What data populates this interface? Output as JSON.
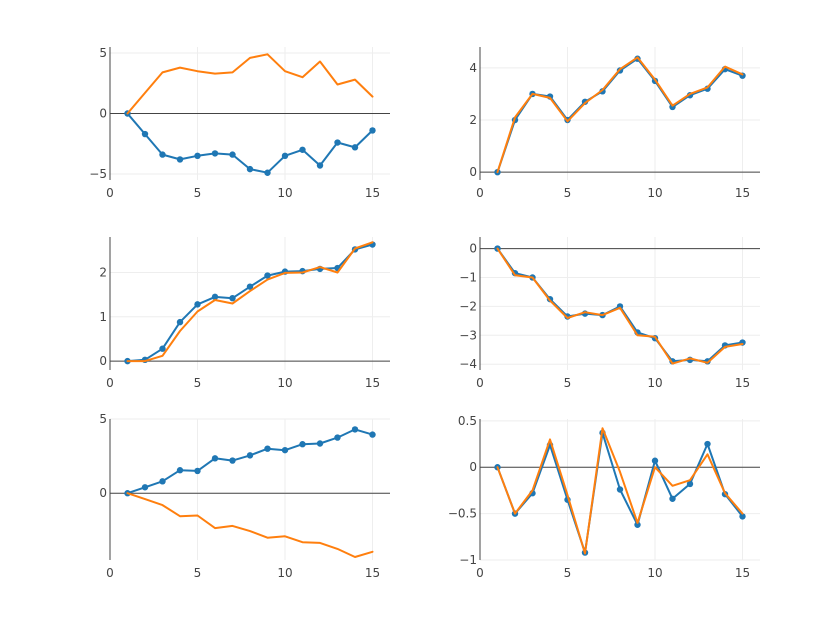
{
  "colors": {
    "series_a": "#1f77b4",
    "series_b": "#ff7f0e",
    "grid": "#eeeeee",
    "axis": "#444444"
  },
  "chart_data": [
    {
      "type": "line",
      "x": [
        1,
        2,
        3,
        4,
        5,
        6,
        7,
        8,
        9,
        10,
        11,
        12,
        13,
        14,
        15
      ],
      "series": [
        {
          "mode": "lines+markers",
          "values": [
            0,
            -1.7,
            -3.4,
            -3.8,
            -3.5,
            -3.3,
            -3.4,
            -4.6,
            -4.9,
            -3.5,
            -3.0,
            -4.3,
            -2.4,
            -2.8,
            -1.4
          ]
        },
        {
          "mode": "lines",
          "values": [
            0,
            1.7,
            3.4,
            3.8,
            3.5,
            3.3,
            3.4,
            4.6,
            4.9,
            3.5,
            3.0,
            4.3,
            2.4,
            2.8,
            1.4
          ]
        }
      ],
      "xlim": [
        0,
        16
      ],
      "ylim": [
        -5.5,
        5.5
      ],
      "xticks": [
        0,
        5,
        10,
        15
      ],
      "yticks": [
        -5,
        0,
        5
      ],
      "grid": true,
      "zeroline": true
    },
    {
      "type": "line",
      "x": [
        1,
        2,
        3,
        4,
        5,
        6,
        7,
        8,
        9,
        10,
        11,
        12,
        13,
        14,
        15
      ],
      "series": [
        {
          "mode": "lines+markers",
          "values": [
            0,
            2.0,
            3.0,
            2.9,
            2.0,
            2.7,
            3.1,
            3.9,
            4.35,
            3.5,
            2.5,
            2.95,
            3.2,
            3.95,
            3.7
          ]
        },
        {
          "mode": "lines",
          "values": [
            0,
            2.1,
            3.0,
            2.85,
            1.95,
            2.65,
            3.15,
            3.95,
            4.4,
            3.55,
            2.55,
            3.0,
            3.25,
            4.05,
            3.75
          ]
        }
      ],
      "xlim": [
        0,
        16
      ],
      "ylim": [
        -0.3,
        4.8
      ],
      "xticks": [
        0,
        5,
        10,
        15
      ],
      "yticks": [
        0,
        2,
        4
      ],
      "grid": true,
      "zeroline": true
    },
    {
      "type": "line",
      "x": [
        1,
        2,
        3,
        4,
        5,
        6,
        7,
        8,
        9,
        10,
        11,
        12,
        13,
        14,
        15
      ],
      "series": [
        {
          "mode": "lines+markers",
          "values": [
            0,
            0.03,
            0.28,
            0.88,
            1.28,
            1.45,
            1.42,
            1.68,
            1.93,
            2.02,
            2.03,
            2.08,
            2.1,
            2.52,
            2.63
          ]
        },
        {
          "mode": "lines",
          "values": [
            0,
            0.0,
            0.12,
            0.68,
            1.12,
            1.38,
            1.3,
            1.58,
            1.84,
            1.99,
            2.0,
            2.12,
            2.0,
            2.54,
            2.68
          ]
        }
      ],
      "xlim": [
        0,
        16
      ],
      "ylim": [
        -0.2,
        2.8
      ],
      "xticks": [
        0,
        5,
        10,
        15
      ],
      "yticks": [
        0,
        1,
        2
      ],
      "grid": true,
      "zeroline": true
    },
    {
      "type": "line",
      "x": [
        1,
        2,
        3,
        4,
        5,
        6,
        7,
        8,
        9,
        10,
        11,
        12,
        13,
        14,
        15
      ],
      "series": [
        {
          "mode": "lines+markers",
          "values": [
            0,
            -0.85,
            -1.0,
            -1.75,
            -2.35,
            -2.25,
            -2.3,
            -2.0,
            -2.9,
            -3.1,
            -3.9,
            -3.85,
            -3.9,
            -3.35,
            -3.25
          ]
        },
        {
          "mode": "lines",
          "values": [
            0,
            -0.92,
            -1.0,
            -1.8,
            -2.4,
            -2.2,
            -2.3,
            -2.05,
            -3.0,
            -3.05,
            -3.98,
            -3.8,
            -3.95,
            -3.4,
            -3.3
          ]
        }
      ],
      "xlim": [
        0,
        16
      ],
      "ylim": [
        -4.2,
        0.4
      ],
      "xticks": [
        0,
        5,
        10,
        15
      ],
      "yticks": [
        0,
        -1,
        -2,
        -3,
        -4
      ],
      "grid": true,
      "zeroline": true
    },
    {
      "type": "line",
      "x": [
        1,
        2,
        3,
        4,
        5,
        6,
        7,
        8,
        9,
        10,
        11,
        12,
        13,
        14,
        15
      ],
      "series": [
        {
          "mode": "lines+markers",
          "values": [
            0,
            0.4,
            0.8,
            1.55,
            1.5,
            2.35,
            2.2,
            2.55,
            3.0,
            2.9,
            3.3,
            3.35,
            3.75,
            4.3,
            3.95
          ]
        },
        {
          "mode": "lines",
          "values": [
            0,
            -0.4,
            -0.8,
            -1.55,
            -1.5,
            -2.35,
            -2.2,
            -2.55,
            -3.0,
            -2.9,
            -3.3,
            -3.35,
            -3.75,
            -4.3,
            -3.95
          ]
        }
      ],
      "xlim": [
        0,
        16
      ],
      "ylim": [
        -4.5,
        5.0
      ],
      "xticks": [
        0,
        5,
        10,
        15
      ],
      "yticks": [
        0,
        5
      ],
      "grid": true,
      "zeroline": true
    },
    {
      "type": "line",
      "x": [
        1,
        2,
        3,
        4,
        5,
        6,
        7,
        8,
        9,
        10,
        11,
        12,
        13,
        14,
        15
      ],
      "series": [
        {
          "mode": "lines+markers",
          "values": [
            0,
            -0.5,
            -0.28,
            0.24,
            -0.35,
            -0.92,
            0.37,
            -0.24,
            -0.62,
            0.07,
            -0.34,
            -0.18,
            0.25,
            -0.29,
            -0.53
          ]
        },
        {
          "mode": "lines",
          "values": [
            0,
            -0.5,
            -0.25,
            0.3,
            -0.3,
            -0.93,
            0.42,
            -0.05,
            -0.6,
            0.0,
            -0.2,
            -0.14,
            0.14,
            -0.28,
            -0.5
          ]
        }
      ],
      "xlim": [
        0,
        16
      ],
      "ylim": [
        -1.0,
        0.52
      ],
      "xticks": [
        0,
        5,
        10,
        15
      ],
      "yticks": [
        0.5,
        0,
        -0.5,
        -1
      ],
      "grid": true,
      "zeroline": true
    }
  ]
}
